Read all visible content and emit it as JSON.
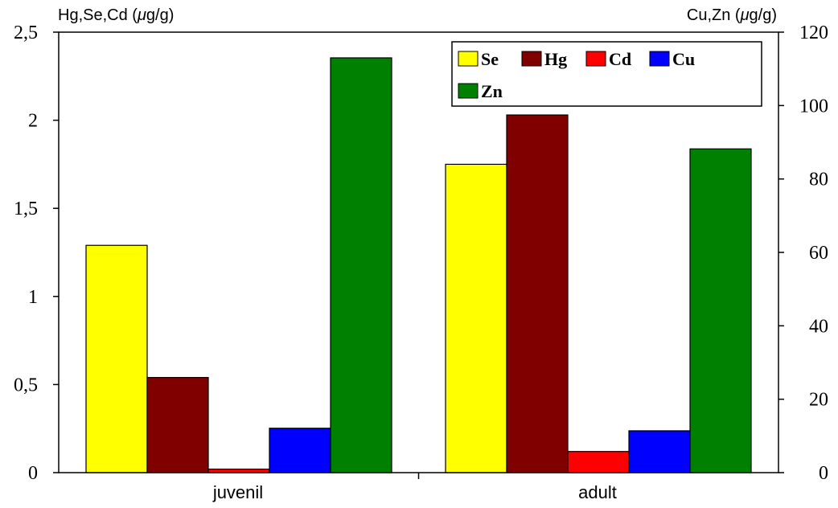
{
  "chart_data": {
    "type": "bar",
    "categories": [
      "juvenil",
      "adult"
    ],
    "left_axis": {
      "label_parts": [
        "Hg,Se,Cd (",
        "μ",
        "g/g)"
      ],
      "ylim": [
        0,
        2.5
      ],
      "ticks": [
        0,
        0.5,
        1,
        1.5,
        2,
        2.5
      ],
      "tick_labels": [
        "0",
        "0,5",
        "1",
        "1,5",
        "2",
        "2,5"
      ]
    },
    "right_axis": {
      "label_parts": [
        "Cu,Zn (",
        "μ",
        "g/g)"
      ],
      "ylim": [
        0,
        120
      ],
      "ticks": [
        0,
        20,
        40,
        60,
        80,
        100,
        120
      ],
      "tick_labels": [
        "0",
        "20",
        "40",
        "60",
        "80",
        "100",
        "120"
      ]
    },
    "series": [
      {
        "name": "Se",
        "axis": "left",
        "color": "#ffff00",
        "values": [
          1.29,
          1.75
        ]
      },
      {
        "name": "Hg",
        "axis": "left",
        "color": "#800000",
        "values": [
          0.54,
          2.03
        ]
      },
      {
        "name": "Cd",
        "axis": "left",
        "color": "#ff0000",
        "values": [
          0.02,
          0.12
        ]
      },
      {
        "name": "Cu",
        "axis": "right",
        "color": "#0000ff",
        "values": [
          12.1,
          11.4
        ]
      },
      {
        "name": "Zn",
        "axis": "right",
        "color": "#008000",
        "values": [
          113,
          88.2
        ]
      }
    ],
    "legend_position": "top-right",
    "grid": false
  }
}
